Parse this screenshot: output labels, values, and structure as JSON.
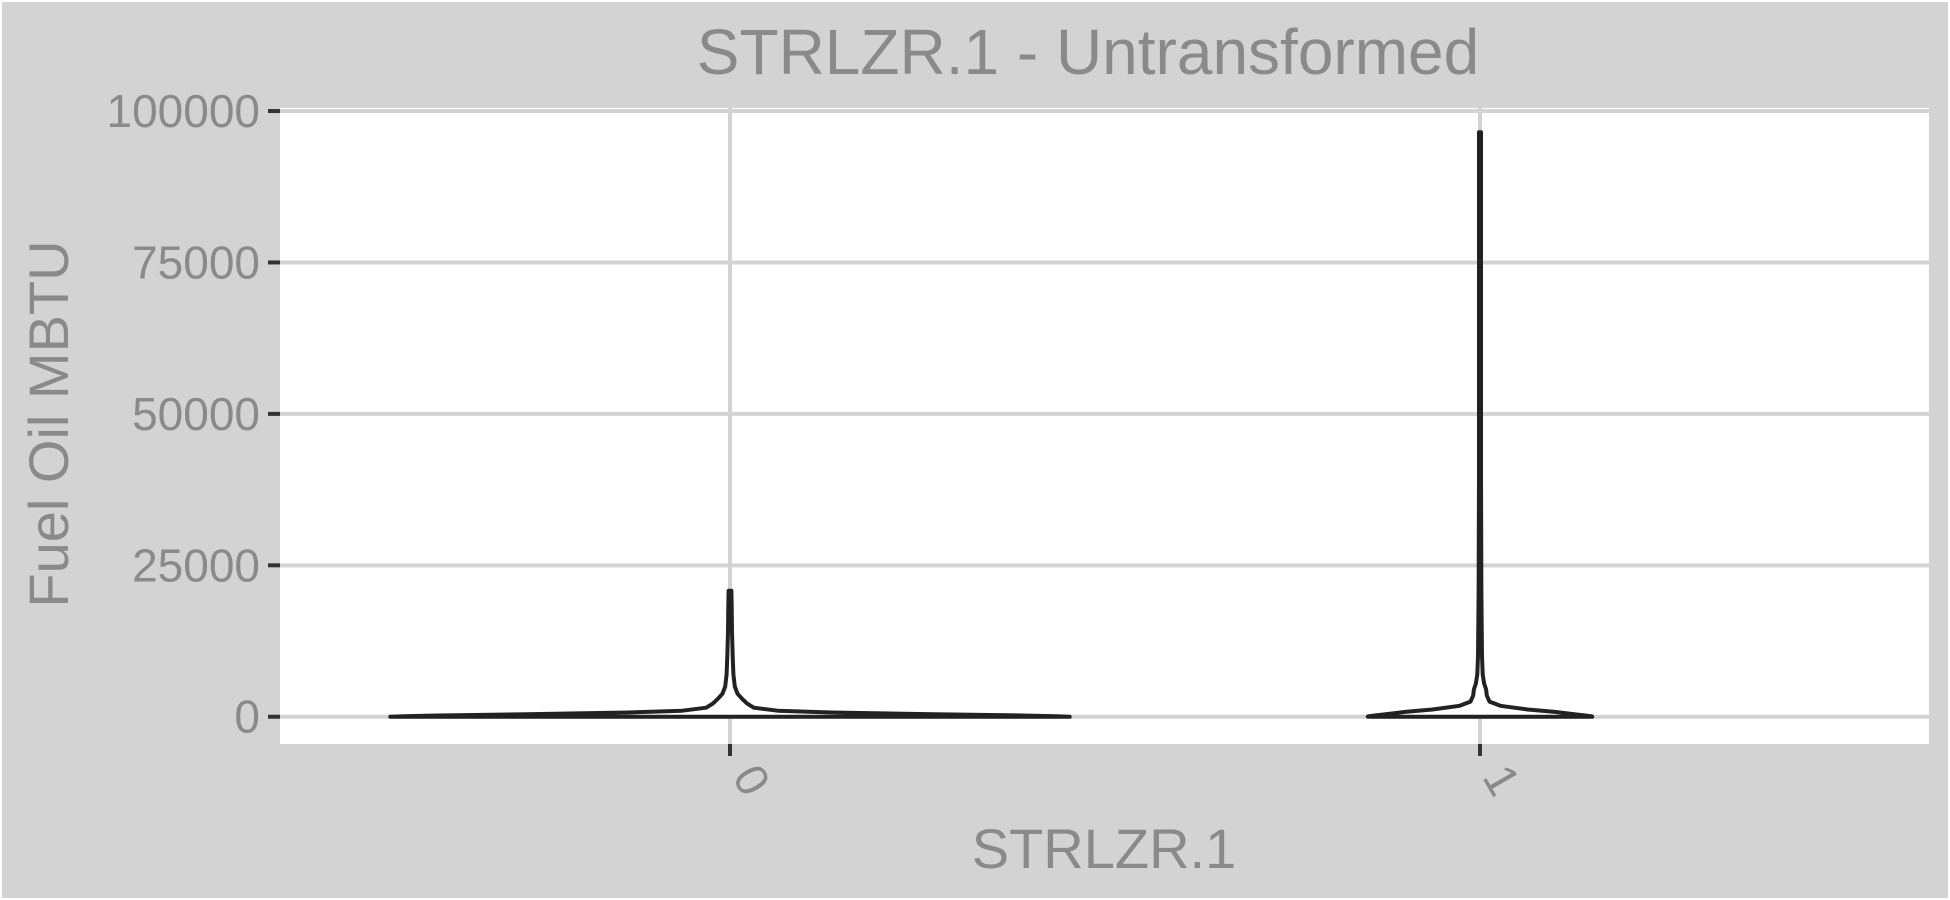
{
  "chart_data": {
    "type": "violin",
    "title": "STRLZR.1 - Untransformed",
    "xlabel": "STRLZR.1",
    "ylabel": "Fuel Oil MBTU",
    "categories": [
      "0",
      "1"
    ],
    "ylim": [
      -4500,
      100500
    ],
    "yticks": [
      0,
      25000,
      50000,
      75000,
      100000
    ],
    "ytick_labels": [
      "0",
      "25000",
      "50000",
      "75000",
      "100000"
    ],
    "grid": true,
    "groups": [
      {
        "category": "0",
        "max": 20800,
        "profile": [
          [
            0,
            0.999
          ],
          [
            80,
            0.96
          ],
          [
            200,
            0.86
          ],
          [
            400,
            0.6
          ],
          [
            700,
            0.3
          ],
          [
            1000,
            0.14
          ],
          [
            1500,
            0.07
          ],
          [
            2200,
            0.05
          ],
          [
            3000,
            0.035
          ],
          [
            3800,
            0.022
          ],
          [
            5000,
            0.014
          ],
          [
            7000,
            0.01
          ],
          [
            10000,
            0.008
          ],
          [
            14000,
            0.006
          ],
          [
            18000,
            0.005
          ],
          [
            20800,
            0.004
          ]
        ]
      },
      {
        "category": "1",
        "max": 96500,
        "profile": [
          [
            0,
            0.33
          ],
          [
            80,
            0.329
          ],
          [
            200,
            0.31
          ],
          [
            400,
            0.28
          ],
          [
            800,
            0.22
          ],
          [
            1200,
            0.14
          ],
          [
            1800,
            0.06
          ],
          [
            2500,
            0.028
          ],
          [
            3500,
            0.02
          ],
          [
            4500,
            0.018
          ],
          [
            5500,
            0.012
          ],
          [
            7000,
            0.008
          ],
          [
            10000,
            0.006
          ],
          [
            20000,
            0.004
          ],
          [
            40000,
            0.003
          ],
          [
            60000,
            0.003
          ],
          [
            96500,
            0.003
          ]
        ]
      }
    ],
    "colors": {
      "panel_background": "#ffffff",
      "plot_background": "#d3d3d3",
      "grid": "#d3d3d3",
      "violin_outline": "#222222",
      "text": "#8a8a8a"
    }
  }
}
